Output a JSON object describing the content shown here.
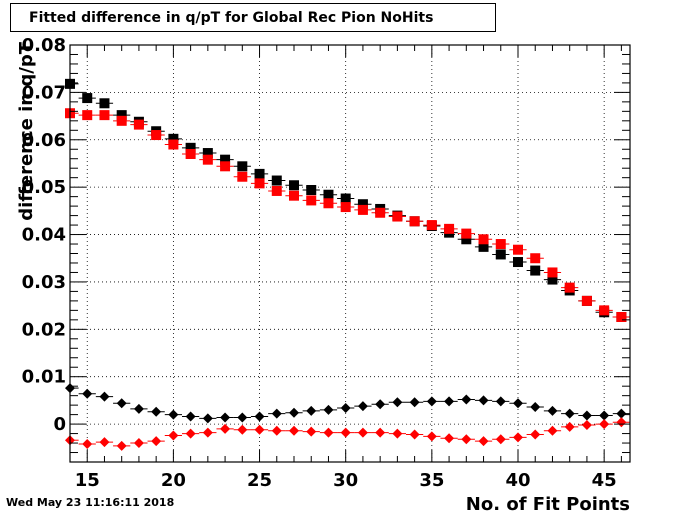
{
  "footer": {
    "timestamp": "Wed May 23 11:16:11 2018"
  },
  "chart_data": {
    "type": "scatter",
    "title": "Fitted difference in q/pT for Global Rec Pion NoHits",
    "xlabel": "No. of Fit Points",
    "ylabel": "difference in q/pT",
    "xlim": [
      14,
      46.5
    ],
    "ylim": [
      -0.008,
      0.08
    ],
    "grid": true,
    "x_ticks": [
      15,
      20,
      25,
      30,
      35,
      40,
      45
    ],
    "x_tick_labels": [
      "15",
      "20",
      "25",
      "30",
      "35",
      "40",
      "45"
    ],
    "y_ticks": [
      0,
      0.01,
      0.02,
      0.03,
      0.04,
      0.05,
      0.06,
      0.07,
      0.08
    ],
    "y_tick_labels": [
      "0",
      "0.01",
      "0.02",
      "0.03",
      "0.04",
      "0.05",
      "0.06",
      "0.07",
      "0.08"
    ],
    "x": [
      14,
      15,
      16,
      17,
      18,
      19,
      20,
      21,
      22,
      23,
      24,
      25,
      26,
      27,
      28,
      29,
      30,
      31,
      32,
      33,
      34,
      35,
      36,
      37,
      38,
      39,
      40,
      41,
      42,
      43,
      44,
      45,
      46
    ],
    "series": [
      {
        "marker": "square",
        "color": "#000000",
        "values": [
          0.0718,
          0.0688,
          0.0677,
          0.0652,
          0.0638,
          0.0618,
          0.0602,
          0.0583,
          0.0572,
          0.0558,
          0.0544,
          0.0528,
          0.0514,
          0.0504,
          0.0494,
          0.0484,
          0.0476,
          0.0464,
          0.0454,
          0.044,
          0.0428,
          0.0418,
          0.0404,
          0.039,
          0.0374,
          0.0358,
          0.0342,
          0.0324,
          0.0305,
          0.0282,
          0.026,
          0.0236,
          0.0226
        ]
      },
      {
        "marker": "square",
        "color": "#ff0000",
        "values": [
          0.0656,
          0.0652,
          0.0652,
          0.064,
          0.0632,
          0.061,
          0.059,
          0.057,
          0.0558,
          0.0544,
          0.0522,
          0.0508,
          0.0492,
          0.0482,
          0.0472,
          0.0466,
          0.0458,
          0.0452,
          0.0446,
          0.0438,
          0.0428,
          0.042,
          0.0412,
          0.0402,
          0.039,
          0.038,
          0.0368,
          0.035,
          0.032,
          0.0288,
          0.026,
          0.024,
          0.0226
        ]
      },
      {
        "marker": "diamond",
        "color": "#000000",
        "values": [
          0.0076,
          0.0064,
          0.0058,
          0.0044,
          0.0032,
          0.0026,
          0.002,
          0.0016,
          0.0012,
          0.0014,
          0.0014,
          0.0016,
          0.0022,
          0.0024,
          0.0028,
          0.003,
          0.0034,
          0.0038,
          0.0042,
          0.0046,
          0.0046,
          0.0048,
          0.0048,
          0.0052,
          0.005,
          0.0048,
          0.0044,
          0.0036,
          0.0028,
          0.0022,
          0.0018,
          0.0018,
          0.0022
        ]
      },
      {
        "marker": "diamond",
        "color": "#ff0000",
        "values": [
          -0.0034,
          -0.0042,
          -0.0038,
          -0.0046,
          -0.004,
          -0.0036,
          -0.0024,
          -0.002,
          -0.0018,
          -0.001,
          -0.0012,
          -0.0012,
          -0.0014,
          -0.0014,
          -0.0016,
          -0.0018,
          -0.0018,
          -0.0018,
          -0.0018,
          -0.002,
          -0.0022,
          -0.0026,
          -0.003,
          -0.0032,
          -0.0036,
          -0.0032,
          -0.0028,
          -0.0022,
          -0.0014,
          -0.0006,
          -0.0002,
          0.0,
          0.0004
        ]
      }
    ]
  }
}
